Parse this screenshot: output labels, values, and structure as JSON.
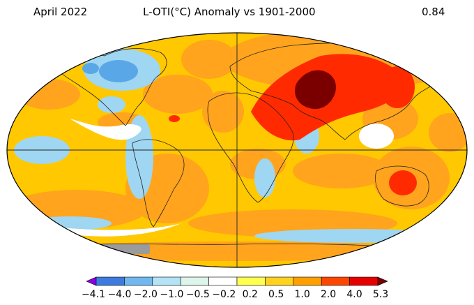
{
  "header": {
    "date": "April 2022",
    "title": "L-OTI(°C) Anomaly vs 1901-2000",
    "global_mean": "0.84"
  },
  "legend": {
    "ticks": [
      "−4.1",
      "−4.0",
      "−2.0",
      "−1.0",
      "−0.5",
      "−0.2",
      "0.2",
      "0.5",
      "1.0",
      "2.0",
      "4.0",
      "5.3"
    ],
    "bins": [
      {
        "color": "#8a00e6"
      },
      {
        "color": "#3d7be0"
      },
      {
        "color": "#70b8ef"
      },
      {
        "color": "#b4e3f7"
      },
      {
        "color": "#ddf5ea"
      },
      {
        "color": "#ffffff"
      },
      {
        "color": "#ffff50"
      },
      {
        "color": "#ffd21e"
      },
      {
        "color": "#ffa000"
      },
      {
        "color": "#ff4600"
      },
      {
        "color": "#e60000"
      },
      {
        "color": "#780000"
      }
    ]
  },
  "colors": {
    "base": "#ffc800",
    "warm": "#ffa41c",
    "hot": "#ff2a00",
    "extreme": "#7a0000",
    "cool": "#9fd6f2",
    "cold": "#5aa7e8",
    "neutral": "#ffffff",
    "missing": "#9b9b9b"
  }
}
